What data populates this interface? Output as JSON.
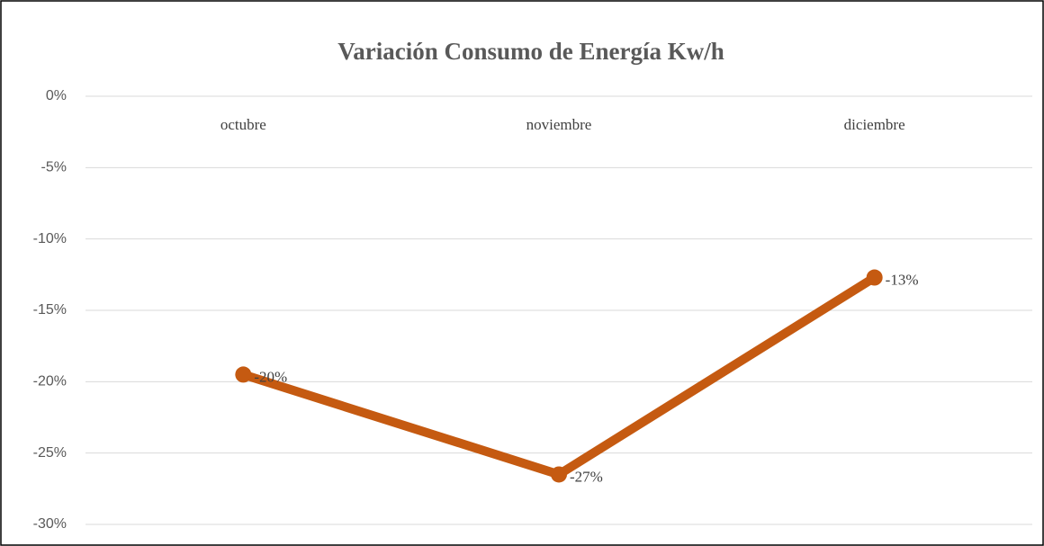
{
  "chart_data": {
    "type": "line",
    "title": "Variación Consumo de Energía Kw/h",
    "categories": [
      "octubre",
      "noviembre",
      "diciembre"
    ],
    "values": [
      -19.5,
      -26.5,
      -12.7
    ],
    "value_labels": [
      "-20%",
      "-27%",
      "-13%"
    ],
    "color": "#c55a11",
    "ylim": [
      -30,
      0
    ],
    "yticks": [
      {
        "value": 0,
        "label": "0%"
      },
      {
        "value": -5,
        "label": "-5%"
      },
      {
        "value": -10,
        "label": "-10%"
      },
      {
        "value": -15,
        "label": "-15%"
      },
      {
        "value": -20,
        "label": "-20%"
      },
      {
        "value": -25,
        "label": "-25%"
      },
      {
        "value": -30,
        "label": "-30%"
      }
    ],
    "grid": true
  }
}
